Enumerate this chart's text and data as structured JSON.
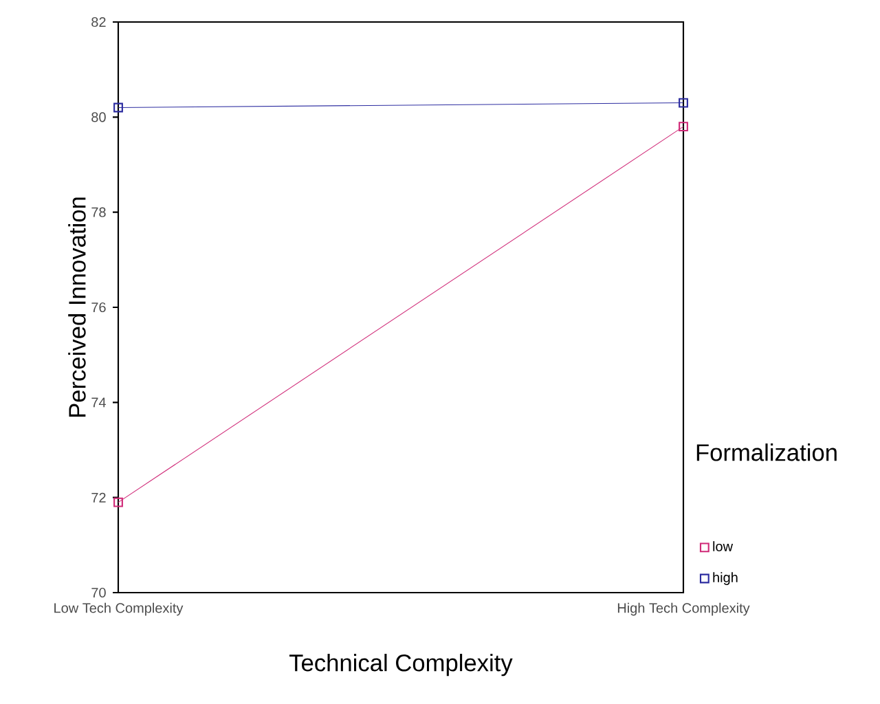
{
  "chart_data": {
    "type": "line",
    "xlabel": "Technical Complexity",
    "ylabel": "Perceived Innovation",
    "legend_title": "Formalization",
    "categories": [
      "Low Tech Complexity",
      "High Tech Complexity"
    ],
    "series": [
      {
        "name": "low",
        "color": "#d02a78",
        "values": [
          71.9,
          79.8
        ]
      },
      {
        "name": "high",
        "color": "#2c2ca0",
        "values": [
          80.2,
          80.3
        ]
      }
    ],
    "ylim": [
      70,
      82
    ],
    "yticks": [
      70,
      72,
      74,
      76,
      78,
      80,
      82
    ],
    "marker": "square",
    "legend": "right",
    "grid": false
  }
}
